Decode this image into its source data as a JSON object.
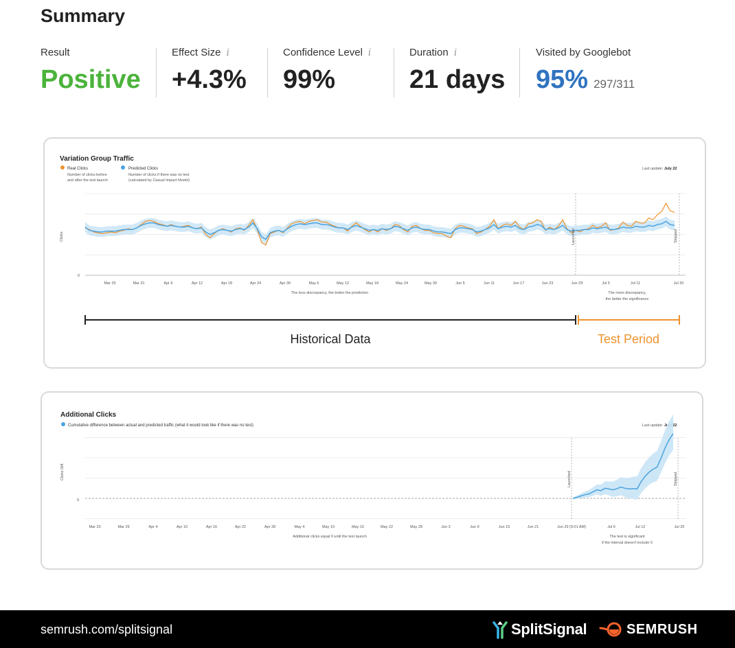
{
  "summary": {
    "title": "Summary",
    "metrics": [
      {
        "label": "Result",
        "value": "Positive",
        "info": false,
        "color": "#4bb33b"
      },
      {
        "label": "Effect Size",
        "value": "+4.3%",
        "info": true
      },
      {
        "label": "Confidence Level",
        "value": "99%",
        "info": true
      },
      {
        "label": "Duration",
        "value": "21 days",
        "info": true
      },
      {
        "label": "Visited by Googlebot",
        "value": "95%",
        "sub": "297/311",
        "info": false,
        "color": "#2f73c0"
      }
    ],
    "info_glyph": "i"
  },
  "chart_data": [
    {
      "type": "line",
      "title": "Variation Group Traffic",
      "legend": [
        {
          "name": "Real Clicks",
          "desc1": "Number of clicks before",
          "desc2": "and after the test launch",
          "color": "#f0922b"
        },
        {
          "name": "Predicted Clicks",
          "desc1": "Number of clicks if there was no test",
          "desc2": "(calculated by Casual Impact Model)",
          "color": "#4aa3df"
        }
      ],
      "last_update_label": "Last update:",
      "last_update_value": "July 22",
      "ylabel": "Clicks",
      "y_zero_label": "0",
      "x_ticks": [
        "Mar 25",
        "Mar 31",
        "Apr 6",
        "Apr 12",
        "Apr 18",
        "Apr 24",
        "Apr 30",
        "May 6",
        "May 12",
        "May 18",
        "May 24",
        "May 30",
        "Jun 5",
        "Jun 11",
        "Jun 17",
        "Jun 23",
        "Jun 29",
        "Jul 5",
        "Jul 11",
        "Jul 20"
      ],
      "launched_label": "Launched",
      "stopped_label": "Stopped",
      "note_left": "The less discrepancy, the better the prediction",
      "note_right_1": "The more discrepancy,",
      "note_right_2": "the better the significance",
      "period_labels": {
        "historical": "Historical Data",
        "test": "Test Period"
      },
      "series": [
        {
          "name": "Real Clicks",
          "values": [
            58,
            56,
            53,
            52,
            51,
            52,
            53,
            52,
            54,
            55,
            57,
            56,
            58,
            62,
            66,
            67,
            66,
            63,
            62,
            60,
            62,
            60,
            59,
            60,
            61,
            58,
            57,
            59,
            50,
            46,
            51,
            55,
            57,
            55,
            53,
            57,
            58,
            55,
            61,
            68,
            56,
            40,
            37,
            51,
            53,
            55,
            52,
            58,
            63,
            65,
            66,
            63,
            66,
            67,
            68,
            65,
            65,
            62,
            60,
            58,
            58,
            54,
            60,
            64,
            60,
            56,
            53,
            56,
            53,
            57,
            55,
            57,
            62,
            61,
            56,
            53,
            60,
            61,
            57,
            55,
            55,
            52,
            51,
            51,
            48,
            46,
            57,
            61,
            60,
            58,
            57,
            51,
            53,
            56,
            60,
            68,
            57,
            61,
            63,
            61,
            66,
            59,
            56,
            63,
            64,
            68,
            66,
            55,
            59,
            56,
            60,
            68,
            57,
            52,
            55,
            53,
            56,
            57,
            61,
            58,
            60,
            64,
            55,
            56,
            58,
            65,
            61,
            60,
            66,
            64,
            64,
            70,
            68,
            74,
            78,
            88,
            79,
            77
          ]
        },
        {
          "name": "Predicted Clicks",
          "values": [
            59,
            55,
            54,
            53,
            53,
            54,
            54,
            54,
            55,
            56,
            56,
            56,
            58,
            61,
            63,
            64,
            64,
            62,
            61,
            60,
            61,
            60,
            59,
            59,
            60,
            58,
            57,
            58,
            53,
            50,
            52,
            55,
            56,
            55,
            54,
            56,
            57,
            56,
            59,
            64,
            57,
            47,
            44,
            52,
            54,
            55,
            53,
            57,
            60,
            62,
            63,
            62,
            63,
            64,
            64,
            62,
            62,
            61,
            59,
            58,
            58,
            56,
            59,
            61,
            59,
            57,
            55,
            56,
            55,
            57,
            56,
            57,
            60,
            59,
            57,
            55,
            58,
            59,
            57,
            56,
            56,
            54,
            53,
            53,
            52,
            51,
            56,
            58,
            58,
            57,
            56,
            53,
            54,
            56,
            58,
            62,
            57,
            59,
            60,
            59,
            61,
            57,
            56,
            59,
            60,
            62,
            61,
            56,
            57,
            56,
            58,
            61,
            56,
            54,
            55,
            55,
            56,
            56,
            58,
            57,
            58,
            59,
            56,
            56,
            57,
            59,
            58,
            58,
            60,
            59,
            59,
            61,
            60,
            62,
            63,
            66,
            62,
            61
          ]
        }
      ]
    },
    {
      "type": "area",
      "title": "Additional Clicks",
      "legend": [
        {
          "name": "Cumulative difference between actual and predicted traffic (what it would look like if there was no test)",
          "color": "#4aa3df"
        }
      ],
      "last_update_label": "Last update:",
      "last_update_value": "July 22",
      "ylabel": "Clicks Diff.",
      "y_zero_label": "0",
      "x_ticks": [
        "Mar 23",
        "Mar 29",
        "Apr 4",
        "Apr 10",
        "Apr 16",
        "Apr 22",
        "Apr 28",
        "May 4",
        "May 10",
        "May 16",
        "May 22",
        "May 28",
        "Jun 3",
        "Jun 9",
        "Jun 15",
        "Jun 21",
        "Jun 29 (9:01 AM)",
        "Jul 6",
        "Jul 12",
        "Jul 20"
      ],
      "launched_label": "Launched",
      "stopped_label": "Stopped",
      "note_left": "Additional clicks equal 0 until the test launch",
      "note_right_1": "The test is significant",
      "note_right_2": "if the interval doesn't include 0",
      "series": [
        {
          "name": "",
          "values": [
            0,
            0.05,
            0.12,
            0.18,
            0.22,
            0.32,
            0.42,
            0.38,
            0.5,
            0.46,
            0.42,
            0.48,
            0.56,
            0.5,
            0.46,
            0.48,
            0.46,
            0.82,
            1.08,
            1.3,
            1.44,
            1.55,
            2.0,
            2.5,
            2.9,
            3.2
          ]
        }
      ]
    }
  ],
  "footer": {
    "url": "semrush.com/splitsignal",
    "brand1": "SplitSignal",
    "brand2": "SEMRUSH"
  }
}
